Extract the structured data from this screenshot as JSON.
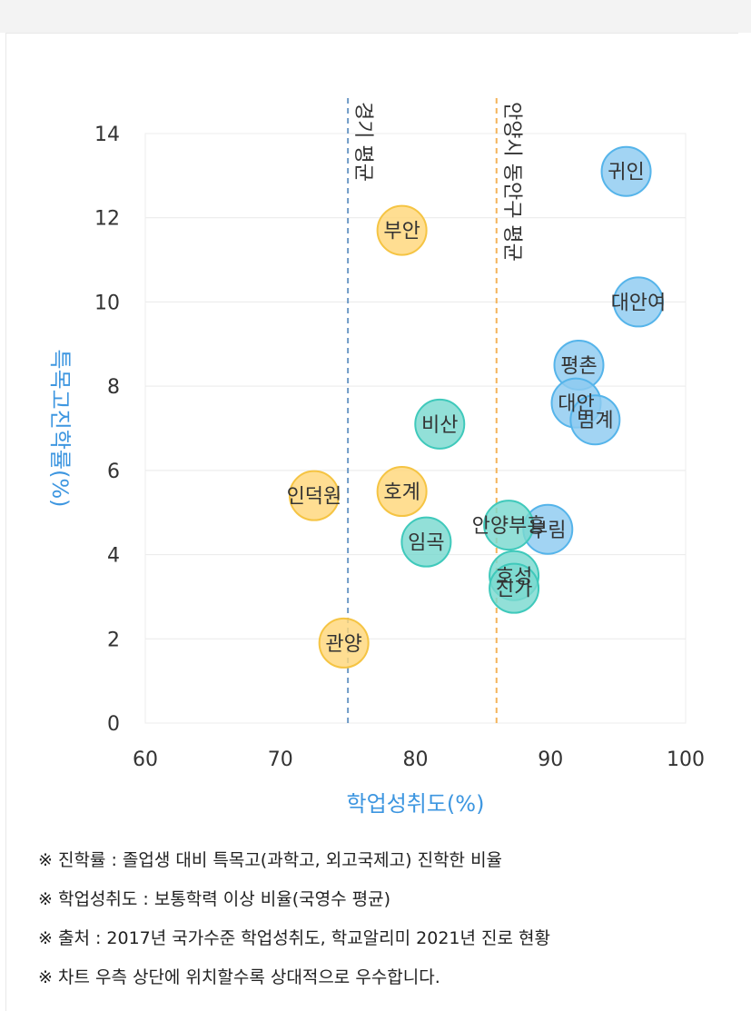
{
  "chart_data": {
    "type": "scatter",
    "xlabel": "학업성취도(%)",
    "ylabel": "특목고진학률(%)",
    "xlim": [
      60,
      100
    ],
    "ylim": [
      0,
      14
    ],
    "xticks": [
      "60",
      "70",
      "80",
      "90",
      "100"
    ],
    "yticks": [
      "0",
      "2",
      "4",
      "6",
      "8",
      "10",
      "12",
      "14"
    ],
    "grid": "horizontal",
    "colors": {
      "blue": "#8ecbf0",
      "teal": "#7ad9cf",
      "yellow": "#ffd77a",
      "vline_blue": "#6d99c6",
      "vline_orange": "#f4b45a",
      "axis_label": "#3d96e0"
    },
    "reference_lines": [
      {
        "label": "경기 평균",
        "x": 75,
        "color": "vline_blue"
      },
      {
        "label": "안양시 동안구 평균",
        "x": 86,
        "color": "vline_orange"
      }
    ],
    "points": [
      {
        "name": "귀인",
        "x": 95.6,
        "y": 13.1,
        "color": "blue"
      },
      {
        "name": "대안여",
        "x": 96.5,
        "y": 10.0,
        "color": "blue"
      },
      {
        "name": "평촌",
        "x": 92.1,
        "y": 8.5,
        "color": "blue"
      },
      {
        "name": "대안",
        "x": 91.9,
        "y": 7.6,
        "color": "blue"
      },
      {
        "name": "범계",
        "x": 93.3,
        "y": 7.2,
        "color": "blue"
      },
      {
        "name": "부림",
        "x": 89.8,
        "y": 4.6,
        "color": "blue"
      },
      {
        "name": "비산",
        "x": 81.8,
        "y": 7.1,
        "color": "teal"
      },
      {
        "name": "안양부흥",
        "x": 86.9,
        "y": 4.7,
        "color": "teal"
      },
      {
        "name": "임곡",
        "x": 80.8,
        "y": 4.3,
        "color": "teal"
      },
      {
        "name": "호성",
        "x": 87.3,
        "y": 3.5,
        "color": "teal"
      },
      {
        "name": "진가",
        "x": 87.3,
        "y": 3.2,
        "color": "teal"
      },
      {
        "name": "부안",
        "x": 79.0,
        "y": 11.7,
        "color": "yellow"
      },
      {
        "name": "호계",
        "x": 79.0,
        "y": 5.5,
        "color": "yellow"
      },
      {
        "name": "인덕원",
        "x": 72.5,
        "y": 5.4,
        "color": "yellow"
      },
      {
        "name": "관양",
        "x": 74.7,
        "y": 1.9,
        "color": "yellow"
      }
    ]
  },
  "notes": [
    "※ 진학률 : 졸업생 대비 특목고(과학고, 외고국제고) 진학한 비율",
    "※ 학업성취도 : 보통학력 이상 비율(국영수 평균)",
    "※ 출처 : 2017년 국가수준 학업성취도, 학교알리미 2021년 진로 현황",
    "※ 차트 우측 상단에 위치할수록 상대적으로 우수합니다."
  ]
}
